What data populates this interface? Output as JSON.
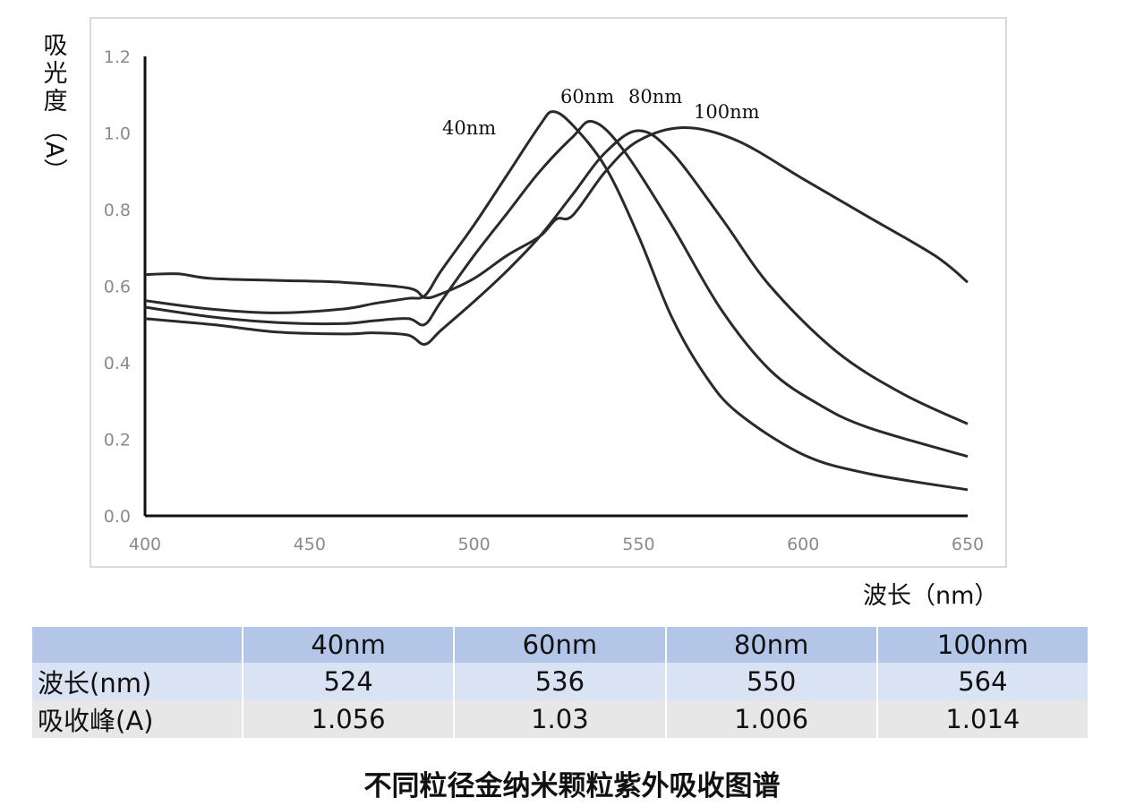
{
  "chart_data": {
    "type": "line",
    "xlabel": "波长（nm）",
    "ylabel": "吸光度（A）",
    "xlim": [
      400,
      650
    ],
    "ylim": [
      0,
      1.2
    ],
    "x_ticks": [
      "400",
      "450",
      "500",
      "550",
      "600",
      "650"
    ],
    "y_ticks": [
      "0.0",
      "0.2",
      "0.4",
      "0.6",
      "0.8",
      "1.0",
      "1.2"
    ],
    "grid": false,
    "series": [
      {
        "name": "40nm",
        "points": [
          [
            400,
            0.562
          ],
          [
            420,
            0.54
          ],
          [
            440,
            0.53
          ],
          [
            460,
            0.54
          ],
          [
            470,
            0.555
          ],
          [
            480,
            0.568
          ],
          [
            485,
            0.575
          ],
          [
            490,
            0.64
          ],
          [
            500,
            0.76
          ],
          [
            510,
            0.89
          ],
          [
            520,
            1.02
          ],
          [
            524,
            1.056
          ],
          [
            530,
            1.02
          ],
          [
            540,
            0.91
          ],
          [
            550,
            0.73
          ],
          [
            560,
            0.52
          ],
          [
            570,
            0.37
          ],
          [
            580,
            0.27
          ],
          [
            600,
            0.16
          ],
          [
            620,
            0.11
          ],
          [
            650,
            0.068
          ]
        ]
      },
      {
        "name": "60nm",
        "points": [
          [
            400,
            0.545
          ],
          [
            420,
            0.52
          ],
          [
            440,
            0.505
          ],
          [
            460,
            0.502
          ],
          [
            470,
            0.51
          ],
          [
            480,
            0.515
          ],
          [
            485,
            0.5
          ],
          [
            490,
            0.56
          ],
          [
            500,
            0.68
          ],
          [
            510,
            0.79
          ],
          [
            520,
            0.9
          ],
          [
            530,
            0.99
          ],
          [
            536,
            1.03
          ],
          [
            545,
            0.96
          ],
          [
            560,
            0.76
          ],
          [
            575,
            0.54
          ],
          [
            590,
            0.38
          ],
          [
            605,
            0.29
          ],
          [
            620,
            0.23
          ],
          [
            650,
            0.155
          ]
        ]
      },
      {
        "name": "80nm",
        "points": [
          [
            400,
            0.515
          ],
          [
            420,
            0.5
          ],
          [
            440,
            0.48
          ],
          [
            460,
            0.475
          ],
          [
            470,
            0.478
          ],
          [
            480,
            0.472
          ],
          [
            485,
            0.448
          ],
          [
            490,
            0.485
          ],
          [
            500,
            0.56
          ],
          [
            510,
            0.64
          ],
          [
            520,
            0.73
          ],
          [
            530,
            0.84
          ],
          [
            540,
            0.95
          ],
          [
            550,
            1.006
          ],
          [
            560,
            0.95
          ],
          [
            575,
            0.78
          ],
          [
            590,
            0.6
          ],
          [
            610,
            0.43
          ],
          [
            630,
            0.32
          ],
          [
            650,
            0.24
          ]
        ]
      },
      {
        "name": "100nm",
        "points": [
          [
            400,
            0.63
          ],
          [
            410,
            0.632
          ],
          [
            420,
            0.62
          ],
          [
            440,
            0.615
          ],
          [
            460,
            0.61
          ],
          [
            480,
            0.595
          ],
          [
            485,
            0.57
          ],
          [
            490,
            0.58
          ],
          [
            500,
            0.62
          ],
          [
            510,
            0.68
          ],
          [
            520,
            0.73
          ],
          [
            525,
            0.775
          ],
          [
            530,
            0.785
          ],
          [
            540,
            0.9
          ],
          [
            550,
            0.98
          ],
          [
            564,
            1.014
          ],
          [
            580,
            0.98
          ],
          [
            600,
            0.88
          ],
          [
            620,
            0.78
          ],
          [
            640,
            0.68
          ],
          [
            650,
            0.61
          ]
        ]
      }
    ],
    "annotations": [
      "40nm",
      "60nm",
      "80nm",
      "100nm"
    ]
  },
  "table": {
    "headers": [
      "",
      "40nm",
      "60nm",
      "80nm",
      "100nm"
    ],
    "rows": [
      {
        "label": "波长(nm)",
        "values": [
          "524",
          "536",
          "550",
          "564"
        ]
      },
      {
        "label": "吸收峰(A)",
        "values": [
          "1.056",
          "1.03",
          "1.006",
          "1.014"
        ]
      }
    ]
  },
  "caption": "不同粒径金纳米颗粒紫外吸收图谱"
}
